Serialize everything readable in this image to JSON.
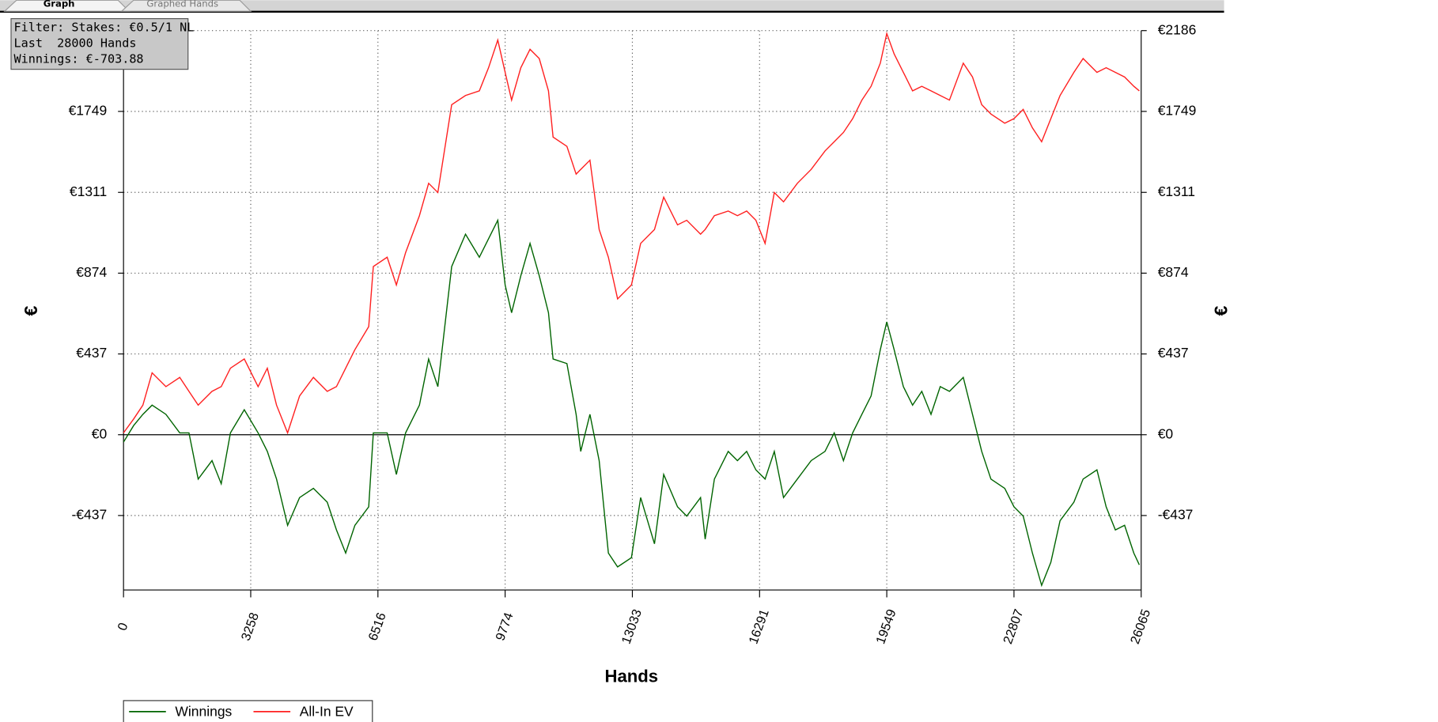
{
  "tabs": [
    "Graph",
    "Graphed Hands"
  ],
  "info": [
    "Filter: Stakes: €0.5/1 NL",
    "Last  28000 Hands",
    "Winnings: €-703.88"
  ],
  "chart_data": {
    "type": "line",
    "x_label": "Hands",
    "y_label": "€",
    "xlim": [
      0,
      26065
    ],
    "xticks": [
      0,
      3258,
      6516,
      9774,
      13033,
      16291,
      19549,
      22807,
      26065
    ],
    "ylim": [
      -840,
      2186
    ],
    "yticks": [
      {
        "value": -437,
        "label": "-€437"
      },
      {
        "value": 0,
        "label": "€0"
      },
      {
        "value": 437,
        "label": "€437"
      },
      {
        "value": 874,
        "label": "€874"
      },
      {
        "value": 1311,
        "label": "€1311"
      },
      {
        "value": 1749,
        "label": "€1749"
      },
      {
        "value": 2186,
        "label": "€2186"
      }
    ],
    "grid": true,
    "legend": "bottom-left",
    "x": [
      0,
      260,
      496,
      732,
      1086,
      1440,
      1676,
      1912,
      2267,
      2503,
      2739,
      3093,
      3447,
      3683,
      3919,
      4203,
      4510,
      4864,
      5218,
      5454,
      5690,
      5926,
      6280,
      6398,
      6752,
      6989,
      7225,
      7579,
      7815,
      8051,
      8405,
      8759,
      9113,
      9350,
      9586,
      9775,
      9940,
      10176,
      10412,
      10648,
      10884,
      11002,
      11356,
      11593,
      11711,
      11947,
      12183,
      12419,
      12655,
      13009,
      13245,
      13599,
      13835,
      14190,
      14426,
      14780,
      14898,
      15134,
      15488,
      15724,
      15960,
      16196,
      16433,
      16669,
      16905,
      17259,
      17613,
      17967,
      18203,
      18439,
      18676,
      18912,
      19148,
      19384,
      19549,
      19738,
      19974,
      20210,
      20446,
      20682,
      20918,
      21155,
      21509,
      21745,
      21981,
      22217,
      22571,
      22807,
      23043,
      23279,
      23516,
      23752,
      23988,
      24342,
      24578,
      24932,
      25168,
      25404,
      25640,
      25877,
      26018
    ],
    "series": [
      {
        "name": "Winnings",
        "color": "#006400",
        "values": [
          -40,
          50,
          110,
          160,
          110,
          10,
          10,
          -240,
          -140,
          -265,
          10,
          135,
          10,
          -90,
          -240,
          -490,
          -340,
          -290,
          -365,
          -515,
          -640,
          -490,
          -390,
          10,
          10,
          -215,
          10,
          160,
          410,
          260,
          910,
          1085,
          960,
          1060,
          1160,
          810,
          660,
          860,
          1035,
          860,
          660,
          410,
          385,
          110,
          -90,
          110,
          -140,
          -640,
          -715,
          -665,
          -340,
          -590,
          -215,
          -390,
          -440,
          -340,
          -565,
          -240,
          -90,
          -140,
          -90,
          -190,
          -240,
          -90,
          -340,
          -240,
          -140,
          -90,
          10,
          -140,
          10,
          110,
          210,
          460,
          610,
          460,
          260,
          160,
          235,
          110,
          260,
          235,
          310,
          110,
          -90,
          -240,
          -290,
          -390,
          -440,
          -640,
          -815,
          -690,
          -465,
          -365,
          -240,
          -190,
          -390,
          -515,
          -490,
          -640,
          -704
        ]
      },
      {
        "name": "All-In EV",
        "color": "#ff2020",
        "values": [
          10,
          85,
          160,
          335,
          260,
          310,
          235,
          160,
          235,
          260,
          360,
          410,
          260,
          360,
          160,
          10,
          210,
          310,
          235,
          260,
          360,
          460,
          585,
          910,
          960,
          810,
          985,
          1185,
          1360,
          1310,
          1785,
          1835,
          1860,
          1985,
          2135,
          1960,
          1810,
          1985,
          2085,
          2035,
          1860,
          1610,
          1560,
          1410,
          1435,
          1485,
          1110,
          960,
          735,
          810,
          1035,
          1110,
          1285,
          1135,
          1160,
          1085,
          1110,
          1185,
          1210,
          1185,
          1210,
          1160,
          1035,
          1310,
          1260,
          1360,
          1435,
          1535,
          1585,
          1635,
          1710,
          1810,
          1885,
          2010,
          2170,
          2060,
          1960,
          1860,
          1885,
          1860,
          1835,
          1810,
          2010,
          1935,
          1785,
          1735,
          1685,
          1710,
          1760,
          1660,
          1585,
          1710,
          1835,
          1960,
          2035,
          1960,
          1985,
          1960,
          1935,
          1885,
          1860
        ]
      }
    ]
  }
}
